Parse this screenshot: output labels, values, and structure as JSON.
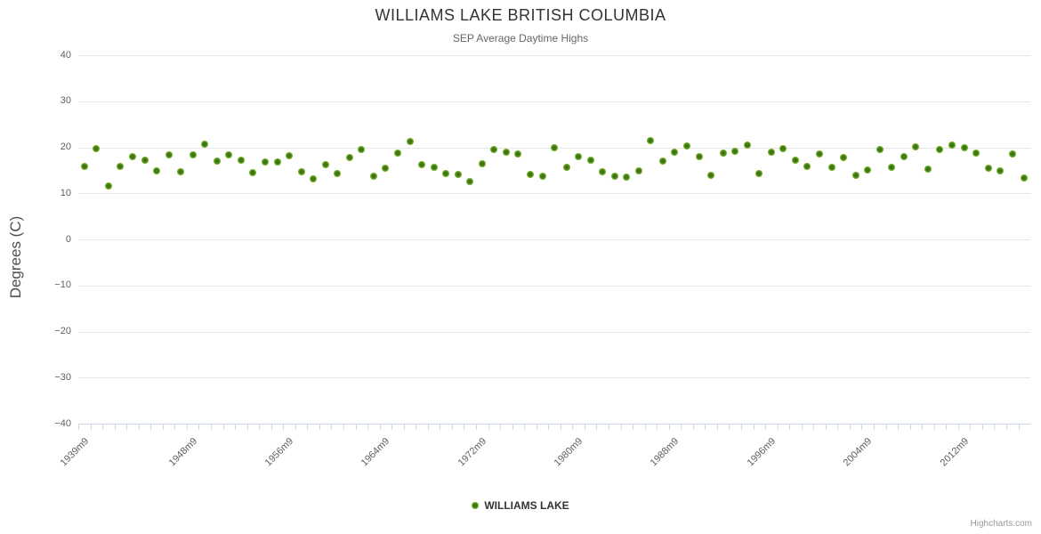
{
  "chart": {
    "title": "WILLIAMS LAKE BRITISH COLUMBIA",
    "subtitle": "SEP Average Daytime Highs",
    "y_axis_title": "Degrees (C)",
    "legend_label": "WILLIAMS LAKE",
    "credit": "Highcharts.com"
  },
  "colors": {
    "marker_outer": "#76B82A",
    "marker_core": "#3E7214",
    "grid": "#E6E6E6",
    "axis_line": "#CCD6EB",
    "title_text": "#333333",
    "subtitle_text": "#666666",
    "axis_label_text": "#606060",
    "legend_text": "#333333",
    "credit_text": "#999999"
  },
  "chart_data": {
    "type": "scatter",
    "title": "WILLIAMS LAKE BRITISH COLUMBIA",
    "subtitle": "SEP Average Daytime Highs",
    "series_name": "WILLIAMS LAKE",
    "xlabel": "",
    "ylabel": "Degrees (C)",
    "ylim": [
      -40,
      40
    ],
    "y_ticks": [
      40,
      30,
      20,
      10,
      0,
      -10,
      -20,
      -30,
      -40
    ],
    "grid": "horizontal-only",
    "legend_position": "bottom-center",
    "marker": "circle",
    "x_tick_labels": [
      "1939m9",
      "1948m9",
      "1956m9",
      "1964m9",
      "1972m9",
      "1980m9",
      "1988m9",
      "1996m9",
      "2004m9",
      "2012m9"
    ],
    "x_tick_indices": [
      0,
      9,
      17,
      25,
      33,
      41,
      49,
      57,
      65,
      73
    ],
    "years": [
      1939,
      1940,
      1941,
      1942,
      1943,
      1944,
      1945,
      1946,
      1947,
      1948,
      1949,
      1950,
      1951,
      1952,
      1953,
      1954,
      1955,
      1956,
      1957,
      1958,
      1959,
      1960,
      1961,
      1962,
      1963,
      1964,
      1965,
      1966,
      1967,
      1968,
      1969,
      1970,
      1971,
      1972,
      1973,
      1974,
      1975,
      1976,
      1977,
      1978,
      1979,
      1980,
      1981,
      1982,
      1983,
      1984,
      1985,
      1986,
      1987,
      1988,
      1989,
      1990,
      1991,
      1992,
      1993,
      1994,
      1995,
      1996,
      1997,
      1998,
      1999,
      2000,
      2001,
      2002,
      2003,
      2004,
      2005,
      2006,
      2007,
      2008,
      2009,
      2010,
      2011,
      2012,
      2013,
      2014,
      2015,
      2016,
      2017
    ],
    "values": [
      15.8,
      19.7,
      11.6,
      15.9,
      17.9,
      17.2,
      14.9,
      18.4,
      14.6,
      18.4,
      20.6,
      17.1,
      18.4,
      17.3,
      14.5,
      16.8,
      16.9,
      18.2,
      14.6,
      13.1,
      16.2,
      14.4,
      17.7,
      19.5,
      13.8,
      15.4,
      18.8,
      21.3,
      16.2,
      15.6,
      14.3,
      14.1,
      12.5,
      16.5,
      19.6,
      18.9,
      18.5,
      14.2,
      13.7,
      20.0,
      15.7,
      18.0,
      17.2,
      14.6,
      13.8,
      13.5,
      14.8,
      21.5,
      17.0,
      19.0,
      20.3,
      18.0,
      13.9,
      18.8,
      19.1,
      20.4,
      14.4,
      19.0,
      19.7,
      17.2,
      15.9,
      18.6,
      15.6,
      17.7,
      13.9,
      15.1,
      19.5,
      15.7,
      18.0,
      20.1,
      15.2,
      19.5,
      20.4,
      19.9,
      18.8,
      15.4,
      14.9,
      18.6,
      13.3
    ]
  }
}
